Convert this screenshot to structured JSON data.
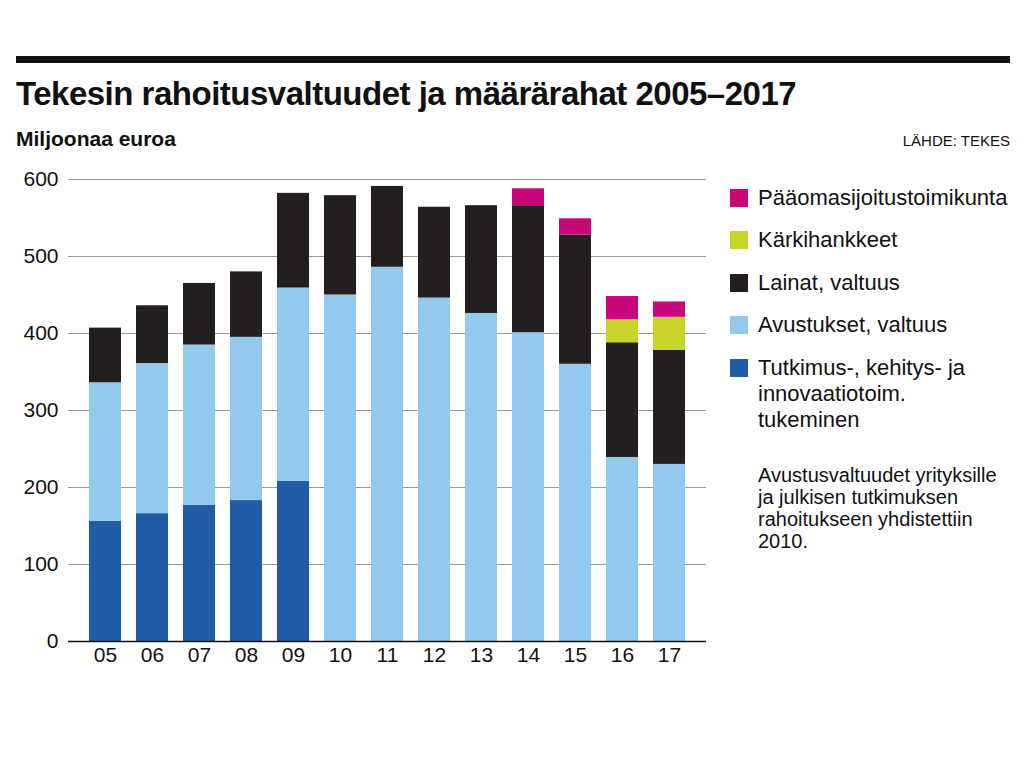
{
  "chart_data": {
    "type": "bar",
    "stacked": true,
    "title": "Tekesin rahoitusvaltuudet ja määrärahat 2005–2017",
    "subtitle": "Miljoonaa euroa",
    "source": "LÄHDE: TEKES",
    "annotation": "Avustusvaltuudet yrityksille ja julkisen tutkimuksen rahoitukseen yhdistettiin 2010.",
    "categories": [
      "05",
      "06",
      "07",
      "08",
      "09",
      "10",
      "11",
      "12",
      "13",
      "14",
      "15",
      "16",
      "17"
    ],
    "series": [
      {
        "name": "Tutkimus-, kehitys- ja innovaatiotoim. tukeminen",
        "color": "#1f5ba6",
        "values": [
          156,
          166,
          177,
          183,
          208,
          null,
          null,
          null,
          null,
          null,
          null,
          null,
          null
        ]
      },
      {
        "name": "Avustukset, valtuus",
        "color": "#93c8ef",
        "values": [
          180,
          195,
          208,
          212,
          251,
          450,
          486,
          446,
          426,
          401,
          360,
          239,
          230
        ]
      },
      {
        "name": "Lainat, valtuus",
        "color": "#231f20",
        "values": [
          71,
          75,
          80,
          85,
          123,
          129,
          105,
          118,
          140,
          165,
          168,
          149,
          148
        ]
      },
      {
        "name": "Kärkihankkeet",
        "color": "#c8d42a",
        "values": [
          null,
          null,
          null,
          null,
          null,
          null,
          null,
          null,
          null,
          null,
          null,
          30,
          43
        ]
      },
      {
        "name": "Pääomasijoitustoimikunta",
        "color": "#c8087a",
        "values": [
          null,
          null,
          null,
          null,
          null,
          null,
          null,
          null,
          null,
          22,
          21,
          30,
          20
        ]
      }
    ],
    "ylim": [
      0,
      600
    ],
    "yticks": [
      0,
      100,
      200,
      300,
      400,
      500,
      600
    ],
    "grid": true,
    "legend": "right"
  }
}
